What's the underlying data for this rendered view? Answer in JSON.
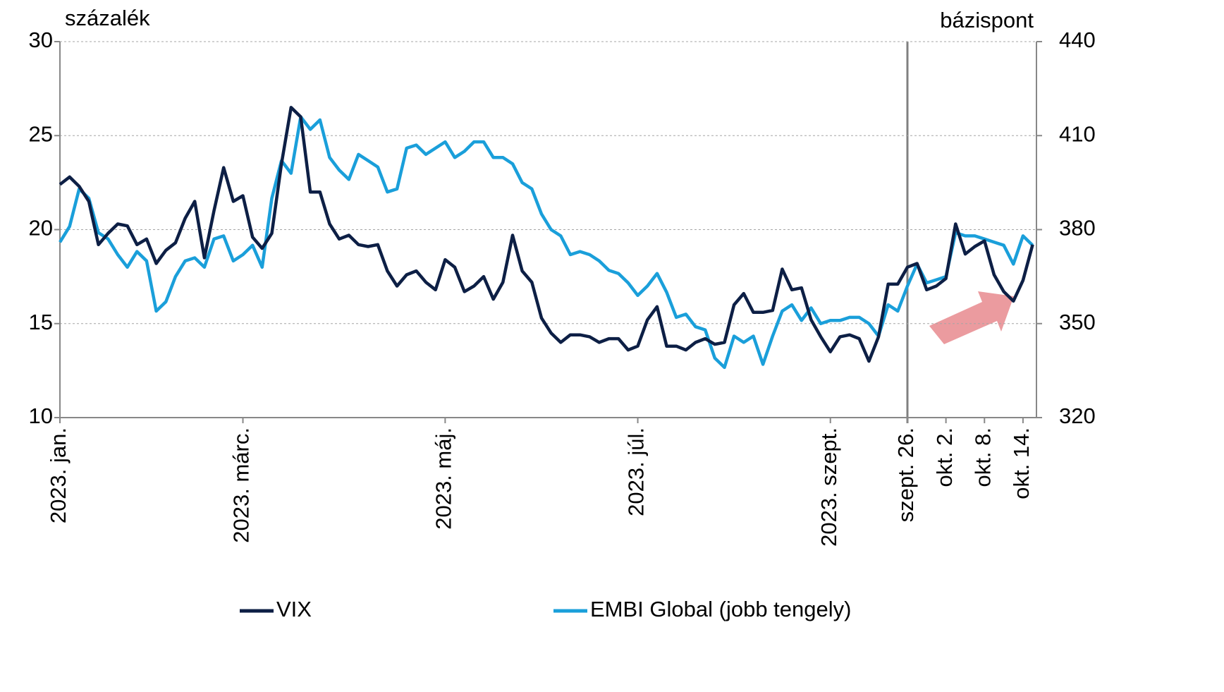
{
  "chart_data": {
    "type": "line",
    "y_label": "százalék",
    "y2_label": "bázispont",
    "categories": [
      "2023. jan.",
      null,
      null,
      null,
      null,
      null,
      null,
      null,
      null,
      null,
      null,
      null,
      null,
      null,
      null,
      null,
      null,
      null,
      null,
      "2023. márc.",
      null,
      null,
      null,
      null,
      null,
      null,
      null,
      null,
      null,
      null,
      null,
      null,
      null,
      null,
      null,
      null,
      null,
      null,
      null,
      null,
      "2023. máj.",
      null,
      null,
      null,
      null,
      null,
      null,
      null,
      null,
      null,
      null,
      null,
      null,
      null,
      null,
      null,
      null,
      null,
      null,
      null,
      "2023. júl.",
      null,
      null,
      null,
      null,
      null,
      null,
      null,
      null,
      null,
      null,
      null,
      null,
      null,
      null,
      null,
      null,
      null,
      null,
      null,
      "2023. szept.",
      null,
      null,
      null,
      null,
      null,
      null,
      null,
      "szept. 26.",
      null,
      null,
      null,
      "okt. 2.",
      null,
      null,
      null,
      "okt. 8.",
      null,
      null,
      null,
      "okt. 14.",
      null
    ],
    "series": [
      {
        "name": "VIX",
        "color": "#0d1f45",
        "values": [
          22.4,
          22.8,
          22.3,
          21.5,
          19.2,
          19.8,
          20.3,
          20.2,
          19.2,
          19.5,
          18.2,
          18.9,
          19.3,
          20.6,
          21.5,
          18.5,
          21.0,
          23.3,
          21.5,
          21.8,
          19.6,
          19.0,
          19.8,
          23.5,
          26.5,
          26.0,
          22.0,
          22.0,
          20.3,
          19.5,
          19.7,
          19.2,
          19.1,
          19.2,
          17.8,
          17.0,
          17.6,
          17.8,
          17.2,
          16.8,
          18.4,
          18.0,
          16.7,
          17.0,
          17.5,
          16.3,
          17.2,
          19.7,
          17.8,
          17.2,
          15.3,
          14.5,
          14.0,
          14.4,
          14.4,
          14.3,
          14.0,
          14.2,
          14.2,
          13.6,
          13.8,
          15.2,
          15.9,
          13.8,
          13.8,
          13.6,
          14.0,
          14.2,
          13.9,
          14.0,
          16.0,
          16.6,
          15.6,
          15.6,
          15.7,
          17.9,
          16.8,
          16.9,
          15.2,
          14.3,
          13.5,
          14.3,
          14.4,
          14.2,
          13.0,
          14.3,
          17.1,
          17.1,
          18.0,
          18.2,
          16.8,
          17.0,
          17.4,
          20.3,
          18.7,
          19.1,
          19.4,
          17.6,
          16.7,
          16.2,
          17.3,
          19.2
        ]
      },
      {
        "name": "EMBI Global (jobb tengely)",
        "color": "#1a9fda",
        "axis": "y2",
        "values": [
          376,
          381,
          393,
          390,
          379,
          377,
          372,
          368,
          373,
          370,
          354,
          357,
          365,
          370,
          371,
          368,
          377,
          378,
          370,
          372,
          375,
          368,
          390,
          402,
          398,
          416,
          412,
          415,
          403,
          399,
          396,
          404,
          402,
          400,
          392,
          393,
          406,
          407,
          404,
          406,
          408,
          403,
          405,
          408,
          408,
          403,
          403,
          401,
          395,
          393,
          385,
          380,
          378,
          372,
          373,
          372,
          370,
          367,
          366,
          363,
          359,
          362,
          366,
          360,
          352,
          353,
          349,
          348,
          339,
          336,
          346,
          344,
          346,
          337,
          346,
          354,
          356,
          351,
          355,
          350,
          351,
          351,
          352,
          352,
          350,
          346,
          356,
          354,
          362,
          369,
          363,
          364,
          365,
          379,
          378,
          378,
          377,
          376,
          375,
          369,
          378,
          375
        ]
      }
    ],
    "ylim": [
      10,
      30
    ],
    "yticks": [
      10,
      15,
      20,
      25,
      30
    ],
    "y2lim": [
      320,
      440
    ],
    "y2ticks": [
      320,
      350,
      380,
      410,
      440
    ],
    "grid": true,
    "legend": "bottom"
  }
}
